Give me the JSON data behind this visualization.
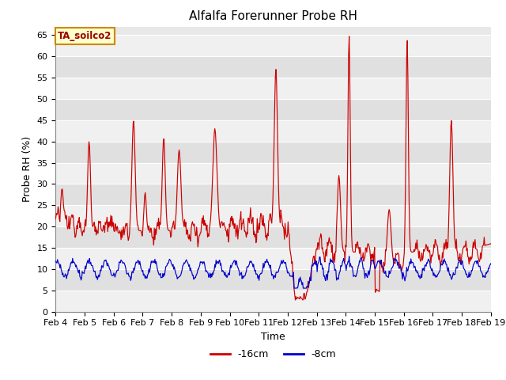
{
  "title": "Alfalfa Forerunner Probe RH",
  "xlabel": "Time",
  "ylabel": "Probe RH (%)",
  "ylim": [
    0,
    67
  ],
  "yticks": [
    0,
    5,
    10,
    15,
    20,
    25,
    30,
    35,
    40,
    45,
    50,
    55,
    60,
    65
  ],
  "figure_bg": "#ffffff",
  "plot_bg": "#e8e8e8",
  "grid_color": "#ffffff",
  "legend_label1": "-16cm",
  "legend_label2": "-8cm",
  "line1_color": "#cc0000",
  "line2_color": "#0000cc",
  "annotation_text": "TA_soilco2",
  "annotation_bg": "#ffffcc",
  "annotation_border": "#cc8800",
  "title_fontsize": 11,
  "axis_label_fontsize": 9,
  "tick_fontsize": 8,
  "xtick_labels": [
    "Feb 4",
    "Feb 5",
    "Feb 6",
    "Feb 7",
    "Feb 8",
    "Feb 9",
    "Feb 10",
    "Feb 11",
    "Feb 12",
    "Feb 13",
    "Feb 14",
    "Feb 15",
    "Feb 16",
    "Feb 17",
    "Feb 18",
    "Feb 19"
  ]
}
